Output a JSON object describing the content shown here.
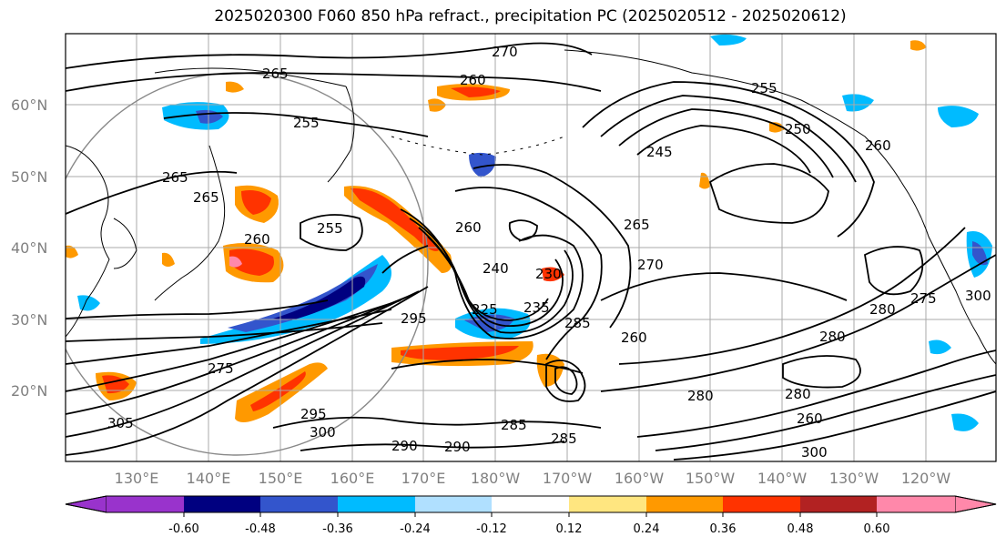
{
  "title": "2025020300 F060 850 hPa refract., precipitation PC (2025020512 - 2025020612)",
  "map": {
    "lat_labels": [
      "60°N",
      "50°N",
      "40°N",
      "30°N",
      "20°N"
    ],
    "lon_labels": [
      "130°E",
      "140°E",
      "150°E",
      "160°E",
      "170°E",
      "180°W",
      "170°W",
      "160°W",
      "150°W",
      "140°W",
      "130°W",
      "120°W"
    ],
    "grid": true,
    "contour_color": "#000000",
    "contour_labels": [
      "270",
      "265",
      "260",
      "255",
      "250",
      "255",
      "260",
      "245",
      "265",
      "270",
      "265",
      "265",
      "260",
      "255",
      "285",
      "260",
      "275",
      "240",
      "235",
      "225",
      "260",
      "230",
      "295",
      "280",
      "280",
      "280",
      "260",
      "290",
      "295",
      "300",
      "305",
      "300",
      "285",
      "290",
      "285",
      "300",
      "280",
      "275"
    ]
  },
  "colorbar": {
    "colors": [
      "#9933cc",
      "#000080",
      "#3355cc",
      "#00bbff",
      "#b0e0ff",
      "#ffffff",
      "#ffe680",
      "#ff9900",
      "#ff3300",
      "#b22222",
      "#ff88aa"
    ],
    "tick_labels": [
      "-0.60",
      "-0.48",
      "-0.36",
      "-0.24",
      "-0.12",
      "0.12",
      "0.24",
      "0.36",
      "0.48",
      "0.60"
    ]
  }
}
